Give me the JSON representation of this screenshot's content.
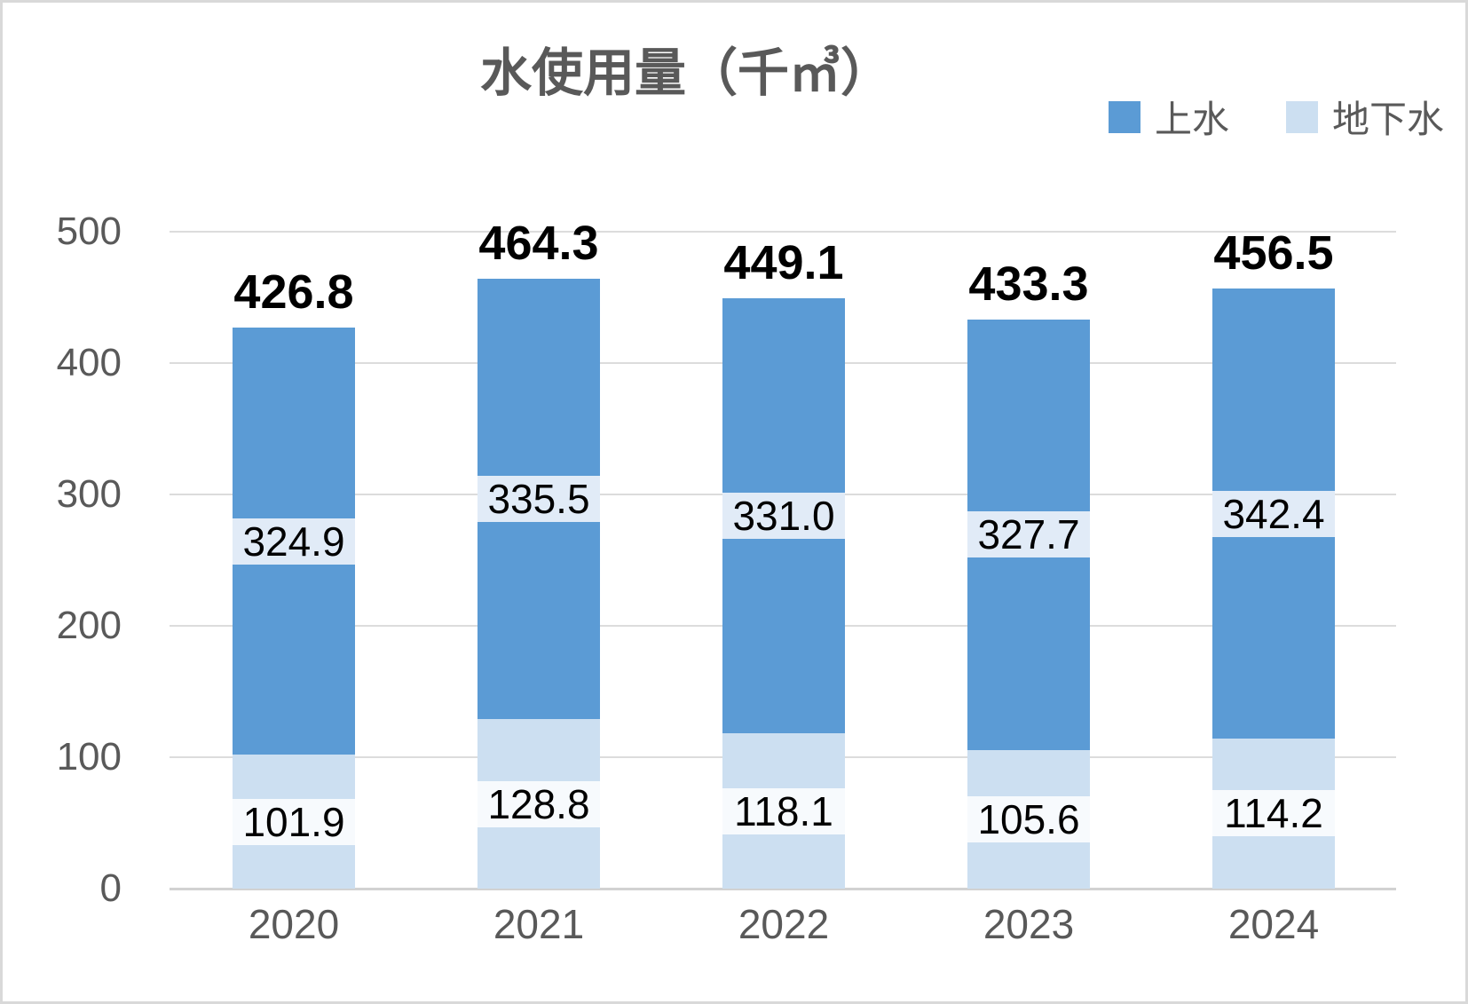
{
  "chart_data": {
    "type": "bar",
    "stacked": true,
    "title": "水使用量（千㎥）",
    "categories": [
      "2020",
      "2021",
      "2022",
      "2023",
      "2024"
    ],
    "series": [
      {
        "id": "tap-water",
        "name": "上水",
        "color": "#5B9BD5",
        "label_bg": "#E1EBF7",
        "values": [
          324.9,
          335.5,
          331.0,
          327.7,
          342.4
        ]
      },
      {
        "id": "groundwater",
        "name": "地下水",
        "color": "#CCDFF1",
        "label_bg": "#F7FAFD",
        "values": [
          101.9,
          128.8,
          118.1,
          105.6,
          114.2
        ]
      }
    ],
    "totals": [
      426.8,
      464.3,
      449.1,
      433.3,
      456.5
    ],
    "ylim": [
      0,
      500
    ],
    "yticks": [
      0,
      100,
      200,
      300,
      400,
      500
    ],
    "grid": true,
    "legend_position": "top-right",
    "value_decimals": 1
  },
  "style_colors": {
    "title_text": "#595959",
    "axis_text": "#595959",
    "label_text": "#000000",
    "gridline": "#DCDCDC",
    "axis_line": "#D2D2D2",
    "frame_border": "#D9D9D9"
  }
}
